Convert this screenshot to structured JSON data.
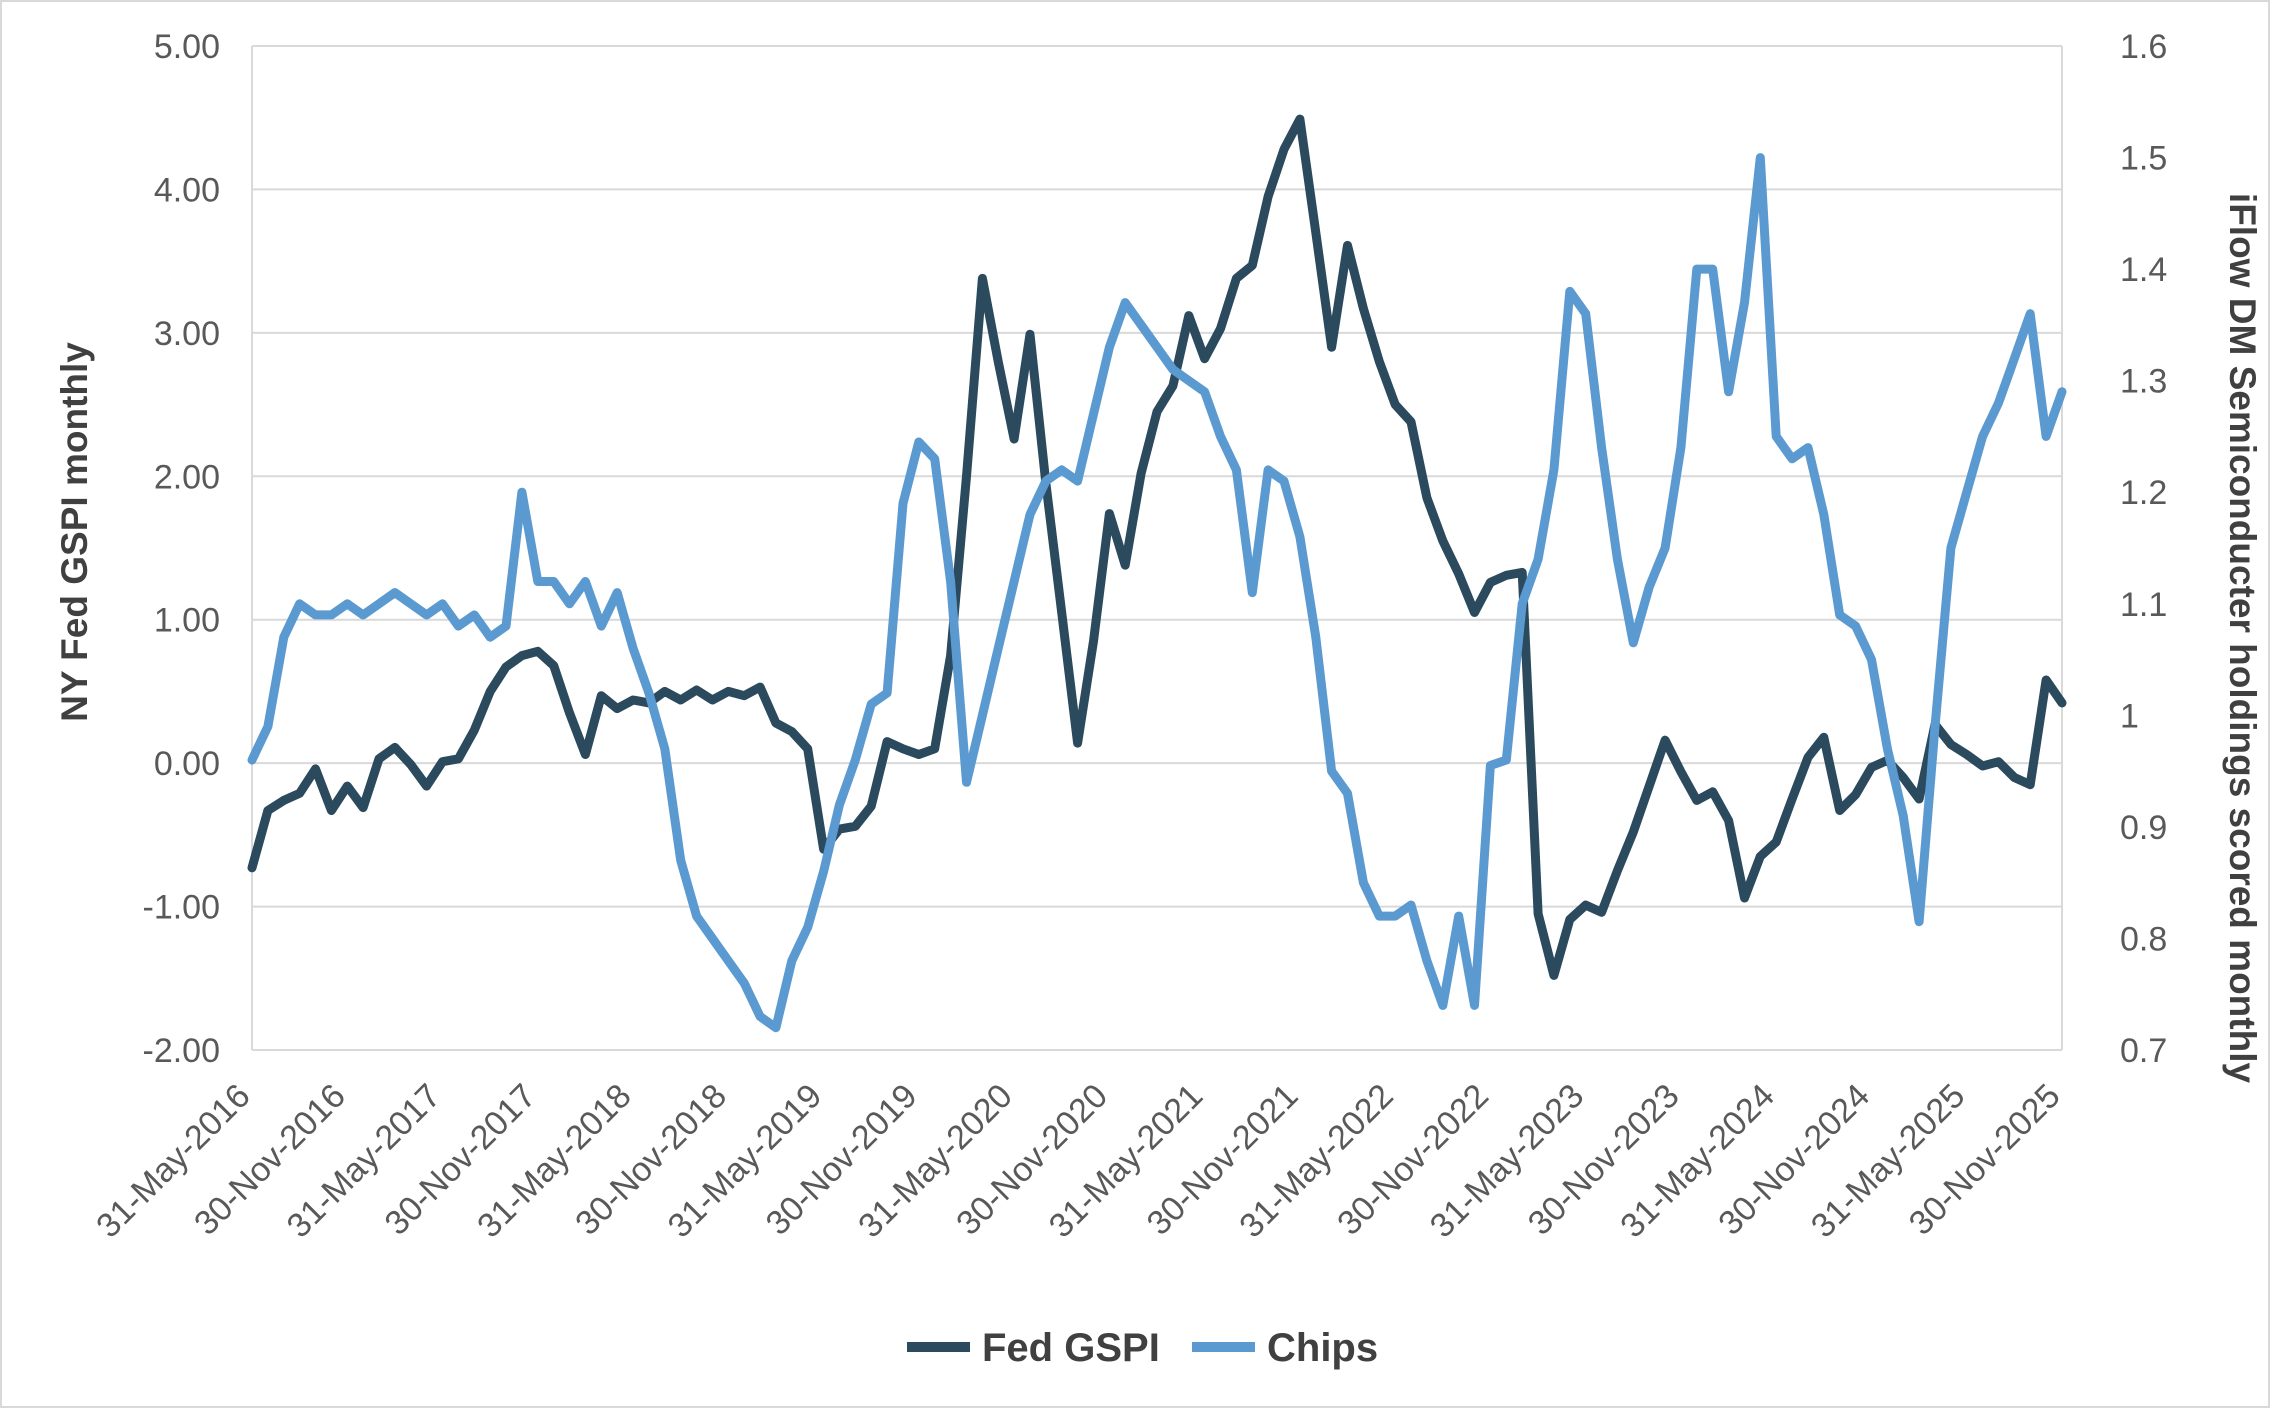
{
  "page": {
    "background": "#ffffff",
    "border_color": "#d9d9d9",
    "gridline_color": "#d9d9d9",
    "tick_text_color": "#595959",
    "title_text_color": "#404040"
  },
  "chart_data": {
    "type": "line",
    "grid": "horizontal",
    "legend_position": "bottom",
    "x_axis": {
      "tick_every": 6,
      "tick_labels": [
        "31-May-2016",
        "30-Nov-2016",
        "31-May-2017",
        "30-Nov-2017",
        "31-May-2018",
        "30-Nov-2018",
        "31-May-2019",
        "30-Nov-2019",
        "31-May-2020",
        "30-Nov-2020",
        "31-May-2021",
        "30-Nov-2021",
        "31-May-2022",
        "30-Nov-2022",
        "31-May-2023",
        "30-Nov-2023",
        "31-May-2024",
        "30-Nov-2024",
        "31-May-2025",
        "30-Nov-2025"
      ]
    },
    "left_axis": {
      "title": "NY Fed GSPI monthly",
      "min": -2,
      "max": 5,
      "ticks": [
        "5.00",
        "4.00",
        "3.00",
        "2.00",
        "1.00",
        "0.00",
        "-1.00",
        "-2.00"
      ]
    },
    "right_axis": {
      "title": "iFlow DM Semiconducter holdings scored monthly",
      "min": 0.7,
      "max": 1.6,
      "ticks": [
        "1.6",
        "1.5",
        "1.4",
        "1.3",
        "1.2",
        "1.1",
        "1",
        "0.9",
        "0.8",
        "0.7"
      ]
    },
    "series": [
      {
        "name": "Fed GSPI",
        "axis": "left",
        "color": "#2B4A5E",
        "stroke_width": 9,
        "values": [
          -0.73,
          -0.33,
          -0.26,
          -0.21,
          -0.04,
          -0.33,
          -0.16,
          -0.31,
          0.03,
          0.11,
          -0.01,
          -0.16,
          0.01,
          0.03,
          0.23,
          0.5,
          0.67,
          0.75,
          0.78,
          0.68,
          0.35,
          0.06,
          0.47,
          0.38,
          0.44,
          0.42,
          0.5,
          0.44,
          0.51,
          0.44,
          0.5,
          0.47,
          0.53,
          0.28,
          0.22,
          0.1,
          -0.6,
          -0.46,
          -0.44,
          -0.3,
          0.15,
          0.1,
          0.06,
          0.1,
          0.75,
          2.0,
          3.38,
          2.8,
          2.26,
          2.99,
          1.95,
          1.05,
          0.14,
          0.85,
          1.74,
          1.38,
          2.02,
          2.45,
          2.63,
          3.12,
          2.82,
          3.03,
          3.38,
          3.47,
          3.95,
          4.28,
          4.49,
          3.7,
          2.9,
          3.61,
          3.17,
          2.8,
          2.5,
          2.38,
          1.85,
          1.55,
          1.32,
          1.05,
          1.26,
          1.31,
          1.33,
          -1.05,
          -1.48,
          -1.09,
          -0.99,
          -1.04,
          -0.75,
          -0.48,
          -0.16,
          0.16,
          -0.06,
          -0.26,
          -0.2,
          -0.4,
          -0.94,
          -0.65,
          -0.55,
          -0.25,
          0.04,
          0.18,
          -0.33,
          -0.22,
          -0.03,
          0.02,
          -0.1,
          -0.25,
          0.27,
          0.13,
          0.06,
          -0.02,
          0.01,
          -0.1,
          -0.15,
          0.58,
          0.42
        ]
      },
      {
        "name": "Chips",
        "axis": "right",
        "color": "#5B9AD0",
        "stroke_width": 9,
        "values": [
          0.96,
          0.99,
          1.07,
          1.1,
          1.09,
          1.09,
          1.1,
          1.09,
          1.1,
          1.11,
          1.1,
          1.09,
          1.1,
          1.08,
          1.09,
          1.07,
          1.08,
          1.2,
          1.12,
          1.12,
          1.1,
          1.12,
          1.08,
          1.11,
          1.06,
          1.02,
          0.97,
          0.87,
          0.82,
          0.8,
          0.78,
          0.76,
          0.73,
          0.72,
          0.78,
          0.81,
          0.86,
          0.92,
          0.96,
          1.01,
          1.02,
          1.19,
          1.245,
          1.23,
          1.12,
          0.94,
          1.0,
          1.06,
          1.12,
          1.18,
          1.21,
          1.22,
          1.21,
          1.27,
          1.33,
          1.37,
          1.35,
          1.33,
          1.31,
          1.3,
          1.29,
          1.25,
          1.22,
          1.11,
          1.22,
          1.21,
          1.16,
          1.07,
          0.95,
          0.93,
          0.85,
          0.82,
          0.82,
          0.83,
          0.78,
          0.74,
          0.82,
          0.74,
          0.955,
          0.96,
          1.1,
          1.14,
          1.22,
          1.38,
          1.36,
          1.24,
          1.14,
          1.065,
          1.115,
          1.15,
          1.24,
          1.4,
          1.4,
          1.29,
          1.37,
          1.5,
          1.25,
          1.23,
          1.24,
          1.18,
          1.09,
          1.08,
          1.05,
          0.97,
          0.91,
          0.815,
          0.99,
          1.15,
          1.2,
          1.25,
          1.28,
          1.32,
          1.36,
          1.25,
          1.29
        ]
      }
    ]
  }
}
